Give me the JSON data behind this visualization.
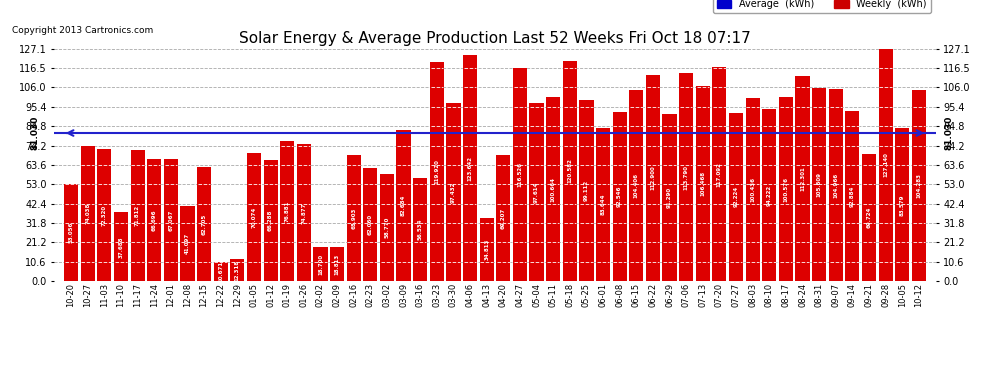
{
  "title": "Solar Energy & Average Production Last 52 Weeks Fri Oct 18 07:17",
  "copyright": "Copyright 2013 Cartronics.com",
  "average_value": 81.03,
  "bar_color": "#dd0000",
  "average_line_color": "#2222cc",
  "background_color": "#ffffff",
  "grid_color": "#aaaaaa",
  "ylim": [
    0.0,
    127.1
  ],
  "yticks": [
    0.0,
    10.6,
    21.2,
    31.8,
    42.4,
    53.0,
    63.6,
    74.2,
    84.8,
    95.4,
    106.0,
    116.5,
    127.1
  ],
  "legend_avg_color": "#0000cc",
  "legend_weekly_color": "#cc0000",
  "dates": [
    "10-20",
    "10-27",
    "11-03",
    "11-10",
    "11-17",
    "11-24",
    "12-01",
    "12-08",
    "12-15",
    "12-22",
    "12-29",
    "01-05",
    "01-12",
    "01-19",
    "01-26",
    "02-02",
    "02-09",
    "02-16",
    "02-23",
    "03-02",
    "03-09",
    "03-16",
    "03-23",
    "03-30",
    "04-06",
    "04-13",
    "04-20",
    "04-27",
    "05-04",
    "05-11",
    "05-18",
    "05-25",
    "06-01",
    "06-08",
    "06-15",
    "06-22",
    "06-29",
    "07-06",
    "07-13",
    "07-20",
    "07-27",
    "08-03",
    "08-10",
    "08-17",
    "08-24",
    "08-31",
    "09-07",
    "09-14",
    "09-21",
    "09-28",
    "10-05",
    "10-12"
  ],
  "values": [
    53.056,
    74.038,
    72.32,
    37.688,
    71.812,
    66.696,
    67.067,
    41.097,
    62.705,
    10.671,
    12.318,
    70.074,
    66.288,
    76.881,
    74.877,
    18.7,
    18.813,
    68.903,
    62.06,
    58.77,
    82.684,
    56.534,
    119.92,
    97.432,
    123.642,
    34.813,
    69.207,
    116.526,
    97.614,
    100.664,
    120.582,
    99.112,
    83.644,
    92.546,
    104.406,
    112.9,
    91.29,
    113.79,
    106.468,
    117.092,
    92.224,
    100.436,
    94.222,
    100.576,
    112.301,
    105.609,
    104.966,
    92.884,
    69.724,
    127.14,
    83.579,
    104.283
  ]
}
